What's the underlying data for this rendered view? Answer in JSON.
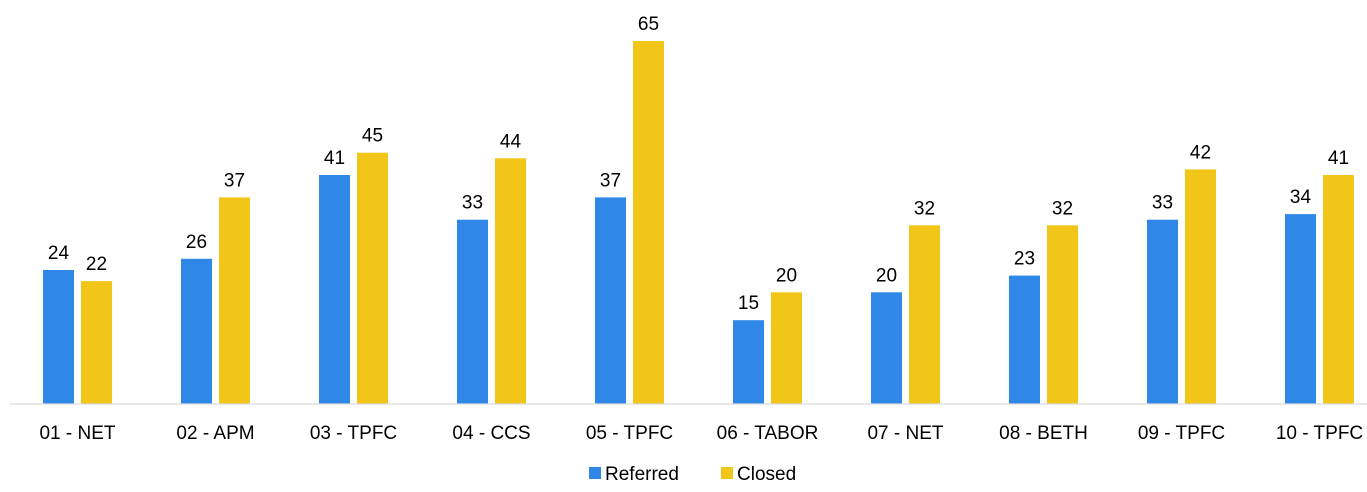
{
  "chart_data": {
    "type": "bar",
    "categories": [
      "01 - NET",
      "02 - APM",
      "03 - TPFC",
      "04 - CCS",
      "05 - TPFC",
      "06 - TABOR",
      "07 - NET",
      "08 - BETH",
      "09 - TPFC",
      "10 - TPFC"
    ],
    "series": [
      {
        "name": "Referred",
        "color": "#2F87E8",
        "values": [
          24,
          26,
          41,
          33,
          37,
          15,
          20,
          23,
          33,
          34
        ]
      },
      {
        "name": "Closed",
        "color": "#F2C618",
        "values": [
          22,
          37,
          45,
          44,
          65,
          20,
          32,
          32,
          42,
          41
        ]
      }
    ],
    "ylim": [
      0,
      70
    ],
    "grid": false,
    "legend_position": "bottom",
    "data_labels": true,
    "axis_color": "#D9D9D9"
  }
}
